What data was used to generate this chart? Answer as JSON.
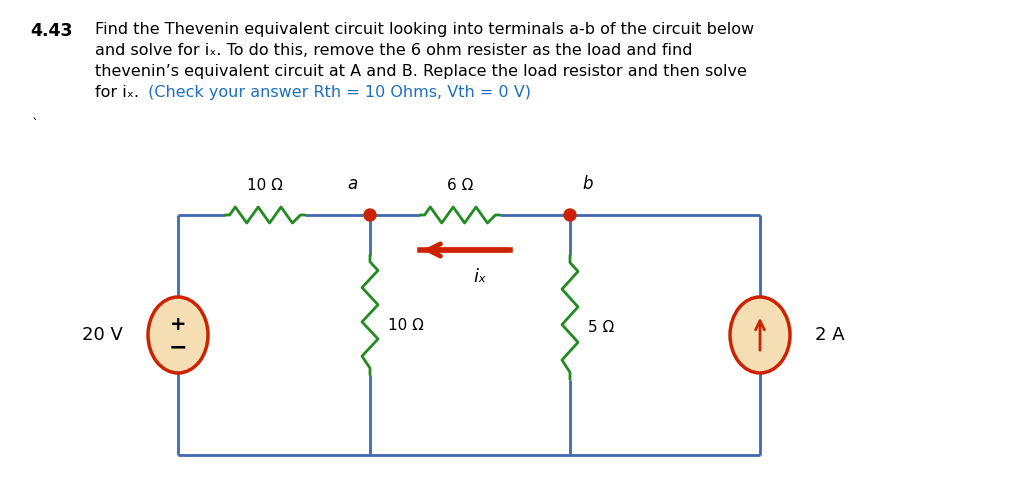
{
  "title_number": "4.43",
  "line1": "Find the Thevenin equivalent circuit looking into terminals a-b of the circuit below",
  "line2": "and solve for iₓ. To do this, remove the 6 ohm resister as the load and find",
  "line3": "thevenin’s equivalent circuit at A and B. Replace the load resistor and then solve",
  "line4_black": "for iₓ.",
  "line4_blue": " (Check your answer Rth = 10 Ohms, Vth = 0 V)",
  "backtick": "`",
  "resistor_top_left_label": "10 Ω",
  "resistor_top_mid_label": "6 Ω",
  "resistor_vert_left_label": "10 Ω",
  "resistor_vert_right_label": "5 Ω",
  "voltage_label": "20 V",
  "current_label_val": "2 A",
  "ix_label": "iₓ",
  "node_a": "a",
  "node_b": "b",
  "wire_color": "#4169B0",
  "resistor_color": "#228B22",
  "source_fill": "#F5DEB3",
  "source_edge": "#CC2200",
  "dot_color": "#CC2200",
  "arrow_color": "#CC2200",
  "blue_text": "#1E6FBF",
  "bg": "#FFFFFF",
  "text_fontsize": 11.5,
  "number_fontsize": 12.5
}
